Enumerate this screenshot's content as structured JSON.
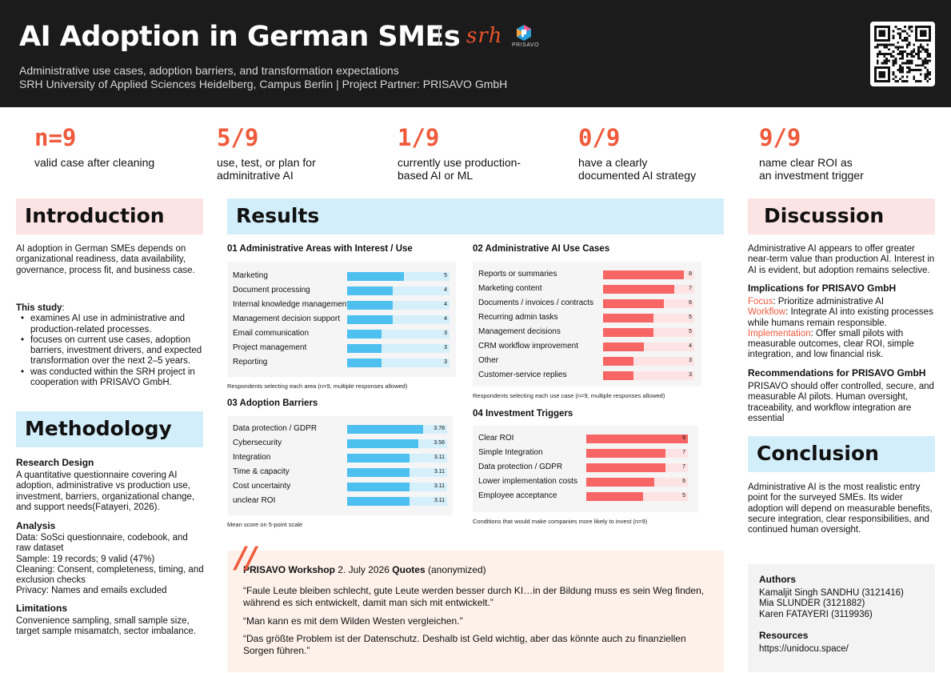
{
  "header": {
    "title": "AI Adoption in German SMEs",
    "logo_prisavo": "PRISAVO",
    "subtitle1": "Administrative use cases, adoption barriers, and transformation expectations",
    "subtitle2": "SRH University of Applied Sciences Heidelberg, Campus Berlin | Project Partner: PRISAVO GmbH"
  },
  "stats": [
    {
      "value": "n=9",
      "label": "valid case after cleaning"
    },
    {
      "value": "5/9",
      "label": "use, test, or plan for\nadminitrative AI"
    },
    {
      "value": "1/9",
      "label": "currently use production-\nbased AI or ML"
    },
    {
      "value": "0/9",
      "label": "have a clearly\ndocumented AI strategy"
    },
    {
      "value": "9/9",
      "label": "name clear ROI as\nan investment trigger"
    }
  ],
  "introduction": {
    "heading": "Introduction",
    "body": "AI adoption in German SMEs depends on organizational readiness, data availability, governance, process fit, and business case.",
    "study_label": "This study",
    "study_colon": ":",
    "bullets": [
      "examines AI use in administrative and production-related processes.",
      "focuses on current use cases, adoption barriers, investment drivers, and expected transformation over the next 2–5 years.",
      "was conducted within the SRH project in cooperation with PRISAVO GmbH."
    ]
  },
  "methodology": {
    "heading": "Methodology",
    "design_title": "Research Design",
    "design_text": "A quantitative questionnaire covering AI adoption, administrative vs production use, investment, barriers, organizational change, and support needs(Fatayeri, 2026).",
    "analysis_title": "Analysis",
    "analysis_lines": [
      "Data: SoSci questionnaire, codebook, and raw dataset",
      "Sample: 19 records; 9 valid (47%)",
      "Cleaning: Consent, completeness, timing, and exclusion checks",
      "Privacy: Names and emails excluded"
    ],
    "limitations_title": "Limitations",
    "limitations_text": "Convenience sampling, small sample size, target sample misamatch, sector imbalance."
  },
  "results": {
    "heading": "Results"
  },
  "chart_data": [
    {
      "type": "bar",
      "orientation": "horizontal",
      "title": "01 Administrative Areas with Interest / Use",
      "categories": [
        "Marketing",
        "Document processing",
        "Internal knowledge management",
        "Management decision support",
        "Email communication",
        "Project management",
        "Reporting"
      ],
      "values": [
        5,
        4,
        4,
        4,
        3,
        3,
        3
      ],
      "xlim": [
        0,
        9
      ],
      "color": "#4ec0f0",
      "note": "Respondents selecting each area (n=9, multiple responses allowed)"
    },
    {
      "type": "bar",
      "orientation": "horizontal",
      "title": "02 Administrative AI Use Cases",
      "categories": [
        "Reports or summaries",
        "Marketing content",
        "Documents / invoices / contracts",
        "Recurring admin tasks",
        "Management decisions",
        "CRM workflow improvement",
        "Other",
        "Customer-service replies"
      ],
      "values": [
        8,
        7,
        6,
        5,
        5,
        4,
        3,
        3
      ],
      "xlim": [
        0,
        9
      ],
      "color": "#f76565",
      "note": "Respondents selecting each use case (n=9, multiple responses allowed)"
    },
    {
      "type": "bar",
      "orientation": "horizontal",
      "title": "03 Adoption Barriers",
      "categories": [
        "Data protection / GDPR",
        "Cybersecurity",
        "Integration",
        "Time & capacity",
        "Cost uncertainty",
        "unclear ROI"
      ],
      "values": [
        3.78,
        3.56,
        3.11,
        3.11,
        3.11,
        3.11
      ],
      "labels": [
        "3.78",
        "3.56",
        "3.11",
        "3.11",
        "3.11",
        "3.11"
      ],
      "xlim": [
        0,
        5
      ],
      "color": "#4ec0f0",
      "note": "Mean score on 5-point scale"
    },
    {
      "type": "bar",
      "orientation": "horizontal",
      "title": "04 Investment Triggers",
      "categories": [
        "Clear ROI",
        "Simple Integration",
        "Data protection / GDPR",
        "Lower implementation costs",
        "Employee acceptance"
      ],
      "values": [
        9,
        7,
        7,
        6,
        5
      ],
      "xlim": [
        0,
        9
      ],
      "color": "#f76565",
      "note": "Conditions that would make companies more likely to invest (n=9)"
    }
  ],
  "quotes": {
    "workshop_label": "PRISAVO Workshop",
    "date": " 2. July 2026 ",
    "quotes_label": "Quotes",
    "anon": " (anonymized)",
    "items": [
      "“Faule Leute bleiben schlecht, gute Leute werden besser durch KI…in der Bildung muss es sein Weg finden, während es sich entwickelt, damit man sich mit entwickelt.”",
      "“Man kann es mit dem Wilden Westen vergleichen.”",
      "“Das größte Problem ist der Datenschutz. Deshalb ist Geld wichtig, aber das könnte auch zu finanziellen Sorgen führen.”"
    ]
  },
  "discussion": {
    "heading": "Discussion",
    "body": "Administrative AI appears to offer greater near-term value than production AI. Interest in AI is evident, but adoption remains selective.",
    "implications_title": "Implications for PRISAVO GmbH",
    "implications": [
      {
        "key": "Focus",
        "text": ": Prioritize administrative AI"
      },
      {
        "key": "Workflow",
        "text": ": Integrate AI into existing processes while humans remain responsible."
      },
      {
        "key": "Implementation",
        "text": ": Offer small pilots with measurable outcomes, clear ROI, simple integration, and low financial risk."
      }
    ],
    "recommendations_title": "Recommendations for PRISAVO GmbH",
    "recommendations_text": "PRISAVO should offer controlled, secure, and measurable AI pilots. Human oversight, traceability, and workflow integration are essential"
  },
  "conclusion": {
    "heading": "Conclusion",
    "body": "Administrative AI is the most realistic entry point for the surveyed SMEs. Its wider adoption will depend on measurable benefits, secure integration, clear responsibilities, and continued human oversight."
  },
  "authors": {
    "title": "Authors",
    "names": [
      "Kamaljit Singh SANDHU (3121416)",
      "Mia SLUNDER (3121882)",
      "Karen FATAYERI (3119936)"
    ],
    "resources_title": "Resources",
    "resources_link": "https://unidocu.space/"
  },
  "colors": {
    "accent": "#ef5a3c",
    "blue_bar": "#4ec0f0",
    "red_bar": "#f76565",
    "header_bg": "#1b1b1b"
  }
}
